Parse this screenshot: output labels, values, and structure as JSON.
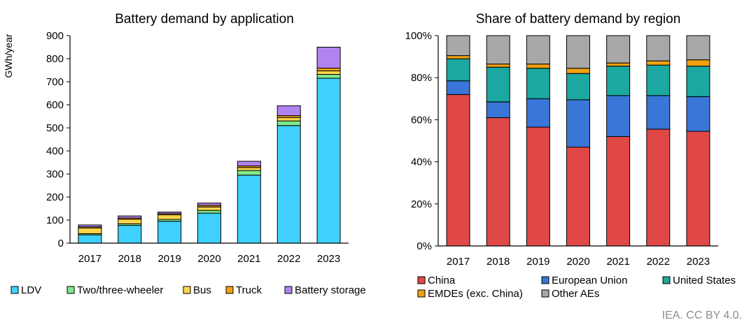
{
  "credit": "IEA. CC BY 4.0.",
  "chart_data": [
    {
      "type": "bar",
      "stacked": true,
      "title": "Battery demand by application",
      "xlabel": "",
      "ylabel": "GWh/year",
      "ylim": [
        0,
        900
      ],
      "yticks": [
        "0",
        "100",
        "200",
        "300",
        "400",
        "500",
        "600",
        "700",
        "800",
        "900"
      ],
      "grid": false,
      "legend_position": "bottom",
      "categories": [
        "2017",
        "2018",
        "2019",
        "2020",
        "2021",
        "2022",
        "2023"
      ],
      "series": [
        {
          "name": "LDV",
          "color": "#40D0FF",
          "values": [
            36,
            77,
            95,
            130,
            295,
            510,
            715
          ]
        },
        {
          "name": "Two/three-wheeler",
          "color": "#7FE88A",
          "values": [
            5,
            7,
            8,
            12,
            20,
            20,
            17
          ]
        },
        {
          "name": "Bus",
          "color": "#FFD54A",
          "values": [
            25,
            20,
            20,
            15,
            13,
            15,
            15
          ]
        },
        {
          "name": "Truck",
          "color": "#F0A010",
          "values": [
            5,
            5,
            5,
            7,
            7,
            8,
            12
          ]
        },
        {
          "name": "Battery storage",
          "color": "#B084F0",
          "values": [
            8,
            9,
            7,
            10,
            20,
            43,
            91
          ]
        }
      ]
    },
    {
      "type": "bar",
      "stacked": true,
      "title": "Share of battery demand by region",
      "xlabel": "",
      "ylabel": "",
      "ylim": [
        0,
        100
      ],
      "yticks": [
        "0%",
        "20%",
        "40%",
        "60%",
        "80%",
        "100%"
      ],
      "grid": false,
      "legend_position": "bottom",
      "categories": [
        "2017",
        "2018",
        "2019",
        "2020",
        "2021",
        "2022",
        "2023"
      ],
      "series": [
        {
          "name": "China",
          "color": "#E04848",
          "values": [
            72,
            61,
            56.5,
            47,
            52,
            55.5,
            54.5
          ]
        },
        {
          "name": "European Union",
          "color": "#3A76D8",
          "values": [
            6.5,
            7.5,
            13.5,
            22.5,
            19.5,
            16,
            16.5
          ]
        },
        {
          "name": "United States",
          "color": "#1AA8A0",
          "values": [
            10.5,
            16.5,
            14.5,
            12.5,
            14,
            14.5,
            14.5
          ]
        },
        {
          "name": "EMDEs (exc. China)",
          "color": "#F0A010",
          "values": [
            1.5,
            1.5,
            2,
            2.5,
            1.5,
            2,
            3
          ]
        },
        {
          "name": "Other AEs",
          "color": "#A8A8A8",
          "values": [
            9.5,
            13.5,
            13.5,
            15.5,
            13,
            12,
            11.5
          ]
        }
      ]
    }
  ]
}
